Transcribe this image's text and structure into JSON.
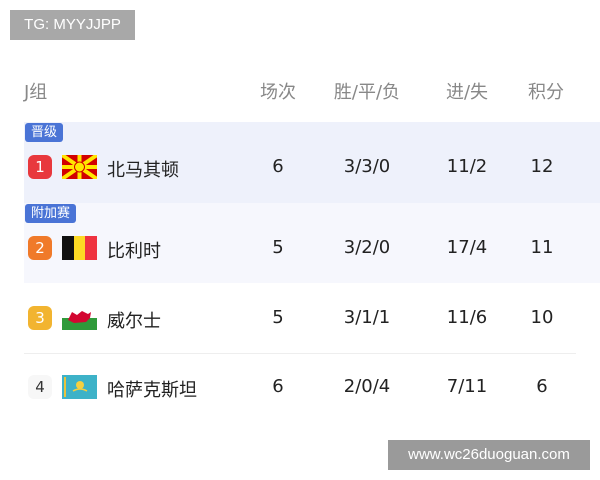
{
  "watermark_top": "TG: MYYJJPP",
  "watermark_bottom": "www.wc26duoguan.com",
  "header": {
    "group": "J组",
    "played": "场次",
    "wdl": "胜/平/负",
    "goals": "进/失",
    "points": "积分"
  },
  "tags": {
    "qualified": "晋级",
    "playoff": "附加赛"
  },
  "rows": [
    {
      "rank": "1",
      "team": "北马其顿",
      "flag": "north-macedonia-flag",
      "played": "6",
      "wdl": "3/3/0",
      "goals": "11/2",
      "points": "12",
      "rank_color": "#e8383d"
    },
    {
      "rank": "2",
      "team": "比利时",
      "flag": "belgium-flag",
      "played": "5",
      "wdl": "3/2/0",
      "goals": "17/4",
      "points": "11",
      "rank_color": "#f07a2a"
    },
    {
      "rank": "3",
      "team": "威尔士",
      "flag": "wales-flag",
      "played": "5",
      "wdl": "3/1/1",
      "goals": "11/6",
      "points": "10",
      "rank_color": "#f2b430"
    },
    {
      "rank": "4",
      "team": "哈萨克斯坦",
      "flag": "kazakhstan-flag",
      "played": "6",
      "wdl": "2/0/4",
      "goals": "7/11",
      "points": "6",
      "rank_color": ""
    }
  ]
}
